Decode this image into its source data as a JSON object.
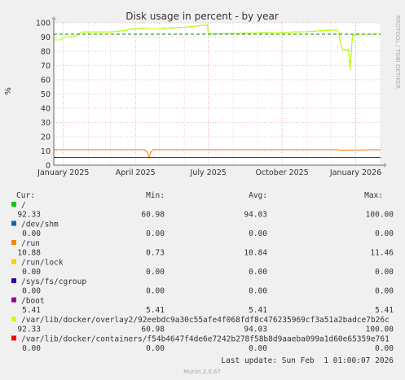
{
  "chart_data": {
    "type": "line",
    "title": "Disk usage in percent - by year",
    "ylabel": "%",
    "side_label": "RRDTOOL / TOBI OETIKER",
    "ylim": [
      0,
      100
    ],
    "yticks": [
      0,
      10,
      20,
      30,
      40,
      50,
      60,
      70,
      80,
      90,
      100
    ],
    "xlim": [
      "2024-12-20",
      "2026-02-01"
    ],
    "xticks": [
      {
        "date": "2025-01-01",
        "label": "January 2025"
      },
      {
        "date": "2025-04-01",
        "label": "April 2025"
      },
      {
        "date": "2025-07-01",
        "label": "July 2025"
      },
      {
        "date": "2025-10-01",
        "label": "October 2025"
      },
      {
        "date": "2026-01-01",
        "label": "January 2026"
      }
    ],
    "warning_line": 92,
    "series": [
      {
        "name": "/",
        "color": "#00cc00",
        "points": [
          [
            "2024-12-20",
            88
          ],
          [
            "2024-12-28",
            88
          ],
          [
            "2025-01-03",
            90
          ],
          [
            "2025-01-10",
            90
          ],
          [
            "2025-01-16",
            91
          ],
          [
            "2025-01-20",
            92
          ],
          [
            "2025-01-24",
            93.5
          ],
          [
            "2025-02-15",
            93.5
          ],
          [
            "2025-03-01",
            93.5
          ],
          [
            "2025-03-08",
            94
          ],
          [
            "2025-03-20",
            94.5
          ],
          [
            "2025-03-25",
            95.5
          ],
          [
            "2025-04-15",
            96
          ],
          [
            "2025-05-01",
            96
          ],
          [
            "2025-05-20",
            96.5
          ],
          [
            "2025-06-05",
            97
          ],
          [
            "2025-06-20",
            98
          ],
          [
            "2025-06-30",
            98.5
          ],
          [
            "2025-07-01",
            92
          ],
          [
            "2025-07-15",
            92.3
          ],
          [
            "2025-08-01",
            92.5
          ],
          [
            "2025-08-20",
            92.8
          ],
          [
            "2025-09-10",
            93
          ],
          [
            "2025-10-01",
            93.2
          ],
          [
            "2025-10-15",
            93.5
          ],
          [
            "2025-11-01",
            93.8
          ],
          [
            "2025-11-20",
            94.5
          ],
          [
            "2025-12-08",
            95
          ],
          [
            "2025-12-11",
            93
          ],
          [
            "2025-12-13",
            86
          ],
          [
            "2025-12-16",
            81
          ],
          [
            "2025-12-23",
            81
          ],
          [
            "2025-12-25",
            67
          ],
          [
            "2025-12-26",
            76
          ],
          [
            "2025-12-28",
            91
          ],
          [
            "2026-01-05",
            92
          ],
          [
            "2026-01-20",
            92
          ],
          [
            "2026-02-01",
            92
          ]
        ]
      },
      {
        "name": "/dev/shm",
        "color": "#0066b3",
        "points": [
          [
            "2024-12-20",
            0
          ],
          [
            "2026-02-01",
            0
          ]
        ]
      },
      {
        "name": "/run",
        "color": "#ff8000",
        "points": [
          [
            "2024-12-20",
            10.9
          ],
          [
            "2025-04-12",
            10.9
          ],
          [
            "2025-04-16",
            9
          ],
          [
            "2025-04-18",
            5
          ],
          [
            "2025-04-20",
            9
          ],
          [
            "2025-04-23",
            10.9
          ],
          [
            "2025-12-10",
            10.9
          ],
          [
            "2025-12-12",
            10.5
          ],
          [
            "2025-12-25",
            10.6
          ],
          [
            "2026-02-01",
            10.9
          ]
        ]
      },
      {
        "name": "/run/lock",
        "color": "#ffcc00",
        "points": [
          [
            "2024-12-20",
            0
          ],
          [
            "2026-02-01",
            0
          ]
        ]
      },
      {
        "name": "/sys/fs/cgroup",
        "color": "#330099",
        "points": [
          [
            "2024-12-20",
            0
          ],
          [
            "2026-02-01",
            0
          ]
        ]
      },
      {
        "name": "/boot",
        "color": "#990099",
        "points": [
          [
            "2024-12-20",
            5.41
          ],
          [
            "2026-02-01",
            5.41
          ]
        ]
      },
      {
        "name": "/var/lib/docker/overlay2/92eebdc9a30c55afe4f068fdf8c476235969cf3a51a2badce7b26c",
        "color": "#ccff00",
        "points": [
          [
            "2024-12-20",
            88
          ],
          [
            "2024-12-28",
            88
          ],
          [
            "2025-01-03",
            90
          ],
          [
            "2025-01-10",
            90
          ],
          [
            "2025-01-16",
            91
          ],
          [
            "2025-01-20",
            92
          ],
          [
            "2025-01-24",
            93.5
          ],
          [
            "2025-02-15",
            93.5
          ],
          [
            "2025-03-01",
            93.5
          ],
          [
            "2025-03-08",
            94
          ],
          [
            "2025-03-20",
            94.5
          ],
          [
            "2025-03-25",
            95.5
          ],
          [
            "2025-04-15",
            96
          ],
          [
            "2025-05-01",
            96
          ],
          [
            "2025-05-20",
            96.5
          ],
          [
            "2025-06-05",
            97
          ],
          [
            "2025-06-20",
            98
          ],
          [
            "2025-06-30",
            98.5
          ],
          [
            "2025-07-01",
            92
          ],
          [
            "2025-07-15",
            92.3
          ],
          [
            "2025-08-01",
            92.5
          ],
          [
            "2025-08-20",
            92.8
          ],
          [
            "2025-09-10",
            93
          ],
          [
            "2025-10-01",
            93.2
          ],
          [
            "2025-10-15",
            93.5
          ],
          [
            "2025-11-01",
            93.8
          ],
          [
            "2025-11-20",
            94.5
          ],
          [
            "2025-12-08",
            95
          ],
          [
            "2025-12-11",
            93
          ],
          [
            "2025-12-13",
            86
          ],
          [
            "2025-12-16",
            81
          ],
          [
            "2025-12-23",
            81
          ],
          [
            "2025-12-25",
            67
          ],
          [
            "2025-12-26",
            76
          ],
          [
            "2025-12-28",
            91
          ],
          [
            "2026-01-05",
            92
          ],
          [
            "2026-01-20",
            92
          ],
          [
            "2026-02-01",
            92
          ]
        ]
      },
      {
        "name": "/var/lib/docker/containers/f54b4647f4de6e7242b278f58b8d9aaeba099a1d60e65359e761",
        "color": "#ff0000",
        "points": [
          [
            "2024-12-20",
            0
          ],
          [
            "2026-02-01",
            0
          ]
        ]
      }
    ]
  },
  "legend": {
    "headers": {
      "cur": "Cur:",
      "min": "Min:",
      "avg": "Avg:",
      "max": "Max:"
    },
    "rows": [
      {
        "name": "/",
        "color": "#00cc00",
        "cur": "92.33",
        "min": "60.98",
        "avg": "94.03",
        "max": "100.00"
      },
      {
        "name": "/dev/shm",
        "color": "#0066b3",
        "cur": "0.00",
        "min": "0.00",
        "avg": "0.00",
        "max": "0.00"
      },
      {
        "name": "/run",
        "color": "#ff8000",
        "cur": "10.88",
        "min": "0.73",
        "avg": "10.84",
        "max": "11.46"
      },
      {
        "name": "/run/lock",
        "color": "#ffcc00",
        "cur": "0.00",
        "min": "0.00",
        "avg": "0.00",
        "max": "0.00"
      },
      {
        "name": "/sys/fs/cgroup",
        "color": "#330099",
        "cur": "0.00",
        "min": "0.00",
        "avg": "0.00",
        "max": "0.00"
      },
      {
        "name": "/boot",
        "color": "#990099",
        "cur": "5.41",
        "min": "5.41",
        "avg": "5.41",
        "max": "5.41"
      },
      {
        "name": "/var/lib/docker/overlay2/92eebdc9a30c55afe4f068fdf8c476235969cf3a51a2badce7b26c",
        "color": "#ccff00",
        "cur": "92.33",
        "min": "60.98",
        "avg": "94.03",
        "max": "100.00"
      },
      {
        "name": "/var/lib/docker/containers/f54b4647f4de6e7242b278f58b8d9aaeba099a1d60e65359e761",
        "color": "#ff0000",
        "cur": "0.00",
        "min": "0.00",
        "avg": "0.00",
        "max": "0.00"
      }
    ]
  },
  "footer": {
    "last_update": "Last update: Sun Feb  1 01:00:07 2026",
    "munin_version": "Munin 2.0.67"
  }
}
